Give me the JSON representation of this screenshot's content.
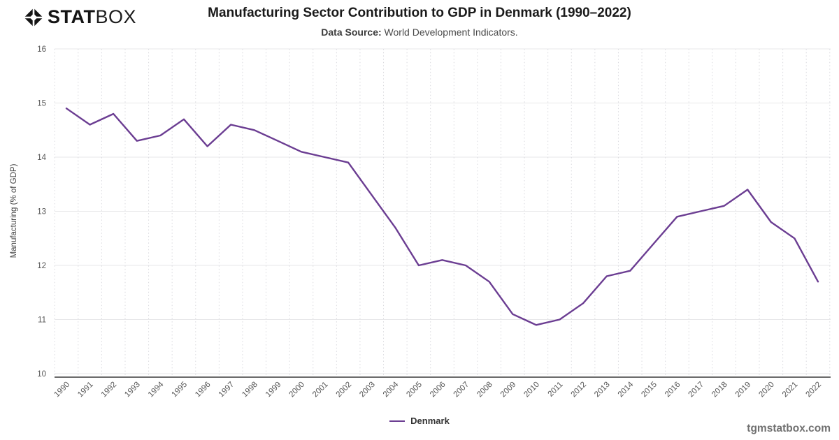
{
  "header": {
    "logo": {
      "stat": "STAT",
      "box": "BOX"
    },
    "title": "Manufacturing Sector Contribution to GDP in Denmark (1990–2022)",
    "source_label": "Data Source:",
    "source_value": "World Development Indicators."
  },
  "chart_data": {
    "type": "line",
    "title": "Manufacturing Sector Contribution to GDP in Denmark (1990–2022)",
    "subtitle": "Data Source: World Development Indicators.",
    "x": [
      1990,
      1991,
      1992,
      1993,
      1994,
      1995,
      1996,
      1997,
      1998,
      1999,
      2000,
      2001,
      2002,
      2003,
      2004,
      2005,
      2006,
      2007,
      2008,
      2009,
      2010,
      2011,
      2012,
      2013,
      2014,
      2015,
      2016,
      2017,
      2018,
      2019,
      2020,
      2021,
      2022
    ],
    "series": [
      {
        "name": "Denmark",
        "color": "#6b3d92",
        "values": [
          14.9,
          14.6,
          14.8,
          14.3,
          14.4,
          14.7,
          14.2,
          14.6,
          14.5,
          14.3,
          14.1,
          14.0,
          13.9,
          13.3,
          12.7,
          12.0,
          12.1,
          12.0,
          11.7,
          11.1,
          10.9,
          11.0,
          11.3,
          11.8,
          11.9,
          12.4,
          12.9,
          13.0,
          13.1,
          13.4,
          12.8,
          12.5,
          11.7
        ]
      }
    ],
    "xlabel": "",
    "ylabel": "Manufacturing (% of GDP)",
    "ylim": [
      10,
      16
    ],
    "ytick_step": 1,
    "grid": true,
    "legend_position": "bottom",
    "colors": {
      "grid_h": "#e7e7e9",
      "grid_v": "#d9d9de",
      "axis": "#3a3a3a",
      "tick_text": "#555555"
    }
  },
  "footer": {
    "watermark": "tgmstatbox.com"
  }
}
